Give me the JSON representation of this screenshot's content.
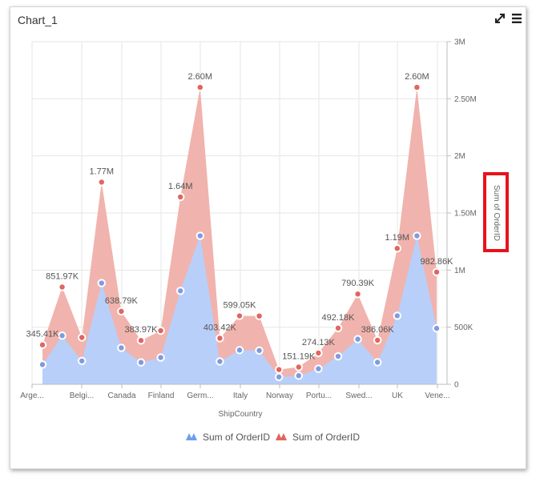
{
  "widget": {
    "title": "Chart_1",
    "expand_icon": "expand-icon",
    "menu_icon": "hamburger-menu-icon"
  },
  "chart_data": {
    "type": "area",
    "xlabel": "ShipCountry",
    "ylabel": "Sum of OrderID",
    "ylim": [
      0,
      3000000
    ],
    "y_ticks": [
      "0",
      "500K",
      "1M",
      "1.50M",
      "2M",
      "2.50M",
      "3M"
    ],
    "grid": true,
    "legend_position": "bottom",
    "x_tick_labels": [
      "Arge...",
      "Belgi...",
      "Canada",
      "Finland",
      "Germ...",
      "Italy",
      "Norway",
      "Portu...",
      "Swed...",
      "UK",
      "Vene..."
    ],
    "x": [
      0,
      1,
      2,
      3,
      4,
      5,
      6,
      7,
      8,
      9,
      10,
      11,
      12,
      13,
      14,
      15,
      16,
      17,
      18,
      19,
      20
    ],
    "series": [
      {
        "name": "Sum of OrderID",
        "color": "#a6c3f7",
        "values": [
          172700,
          426000,
          204900,
          886200,
          319400,
          191900,
          234700,
          818000,
          1300000,
          199900,
          299600,
          296000,
          64600,
          75700,
          135900,
          245000,
          395200,
          193000,
          600000,
          1300000,
          490000
        ]
      },
      {
        "name": "Sum of OrderID",
        "color": "#ec8a82",
        "values": [
          345410,
          851970,
          410000,
          1770000,
          638790,
          383970,
          469380,
          1640000,
          2600000,
          403420,
          599050,
          598000,
          129000,
          151190,
          274130,
          492180,
          790390,
          386060,
          1190000,
          2600000,
          982860
        ]
      }
    ],
    "data_labels": [
      {
        "index": 0,
        "text": "345.41K"
      },
      {
        "index": 1,
        "text": "851.97K"
      },
      {
        "index": 3,
        "text": "1.77M"
      },
      {
        "index": 4,
        "text": "638.79K"
      },
      {
        "index": 5,
        "text": "383.97K"
      },
      {
        "index": 7,
        "text": "1.64M"
      },
      {
        "index": 8,
        "text": "2.60M"
      },
      {
        "index": 9,
        "text": "403.42K"
      },
      {
        "index": 10,
        "text": "599.05K"
      },
      {
        "index": 13,
        "text": "151.19K"
      },
      {
        "index": 14,
        "text": "274.13K"
      },
      {
        "index": 15,
        "text": "492.18K"
      },
      {
        "index": 16,
        "text": "790.39K"
      },
      {
        "index": 17,
        "text": "386.06K"
      },
      {
        "index": 18,
        "text": "1.19M"
      },
      {
        "index": 19,
        "text": "2.60M"
      },
      {
        "index": 20,
        "text": "982.86K"
      }
    ],
    "legend": [
      {
        "label": "Sum of OrderID",
        "color": "#6f9ef0"
      },
      {
        "label": "Sum of OrderID",
        "color": "#e0665e"
      }
    ],
    "highlight_color": "#e8121c"
  }
}
